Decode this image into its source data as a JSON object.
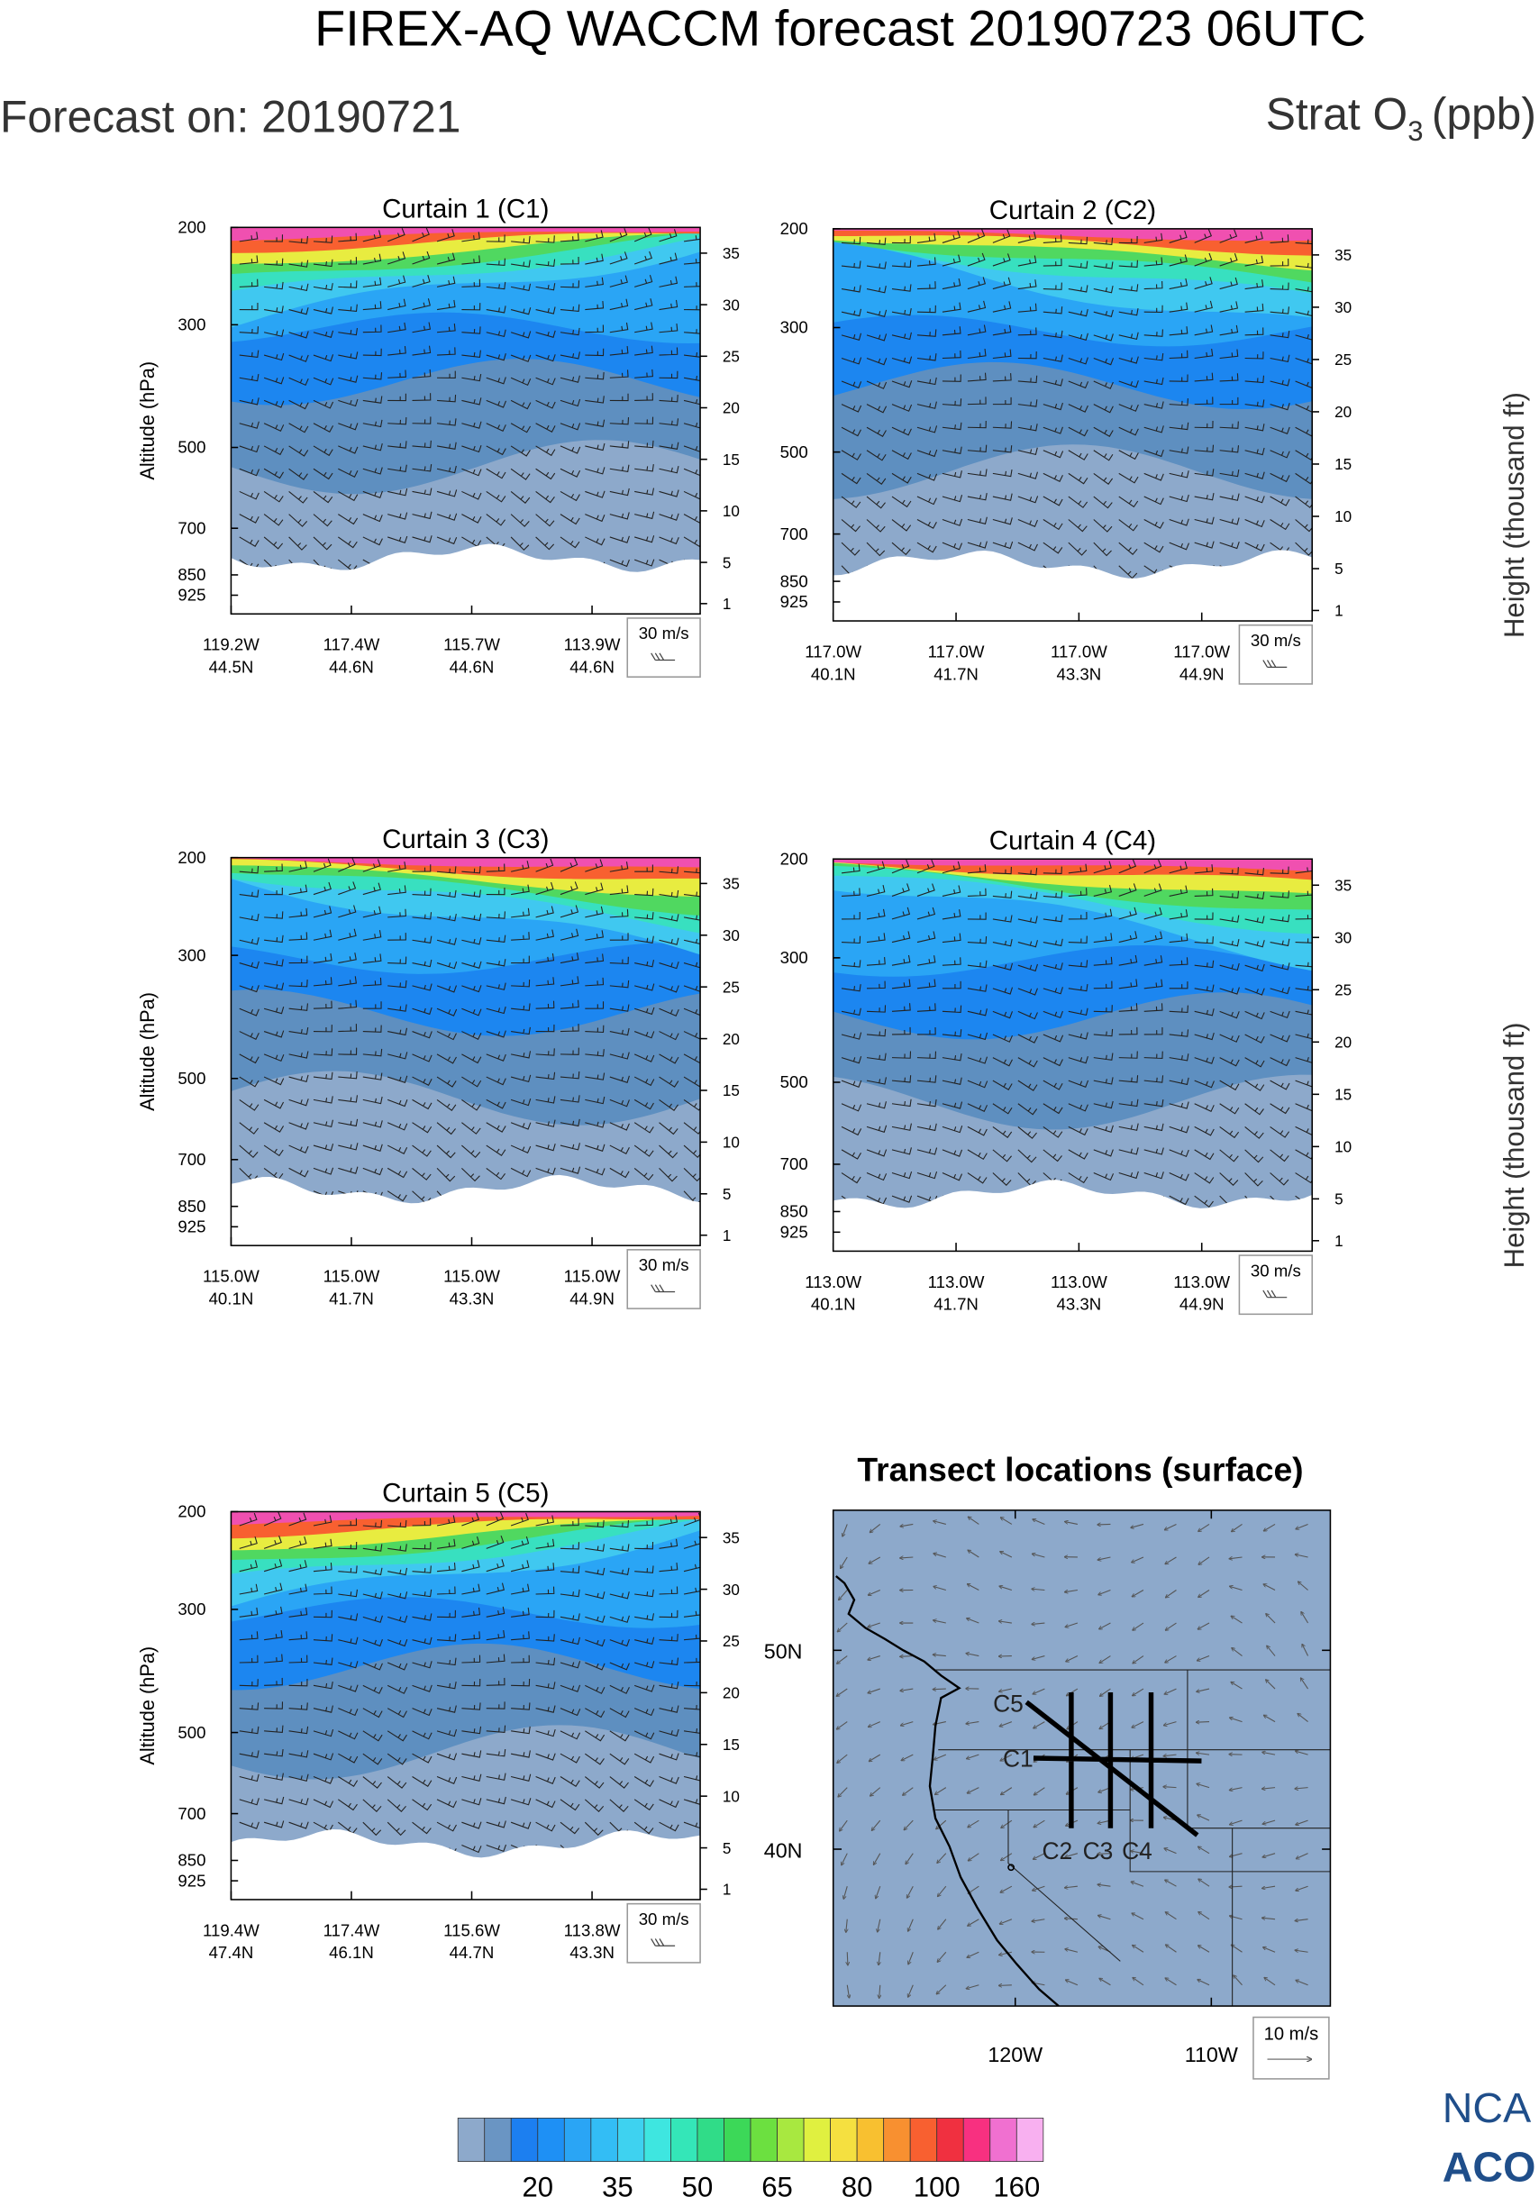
{
  "header": {
    "title": "FIREX-AQ WACCM forecast 20190723 06UTC",
    "forecast_date": "Forecast on: 20190721",
    "variable": "Strat O",
    "variable_sub": "3",
    "variable_unit": "(ppb)"
  },
  "chart_data": [
    {
      "type": "contour",
      "title": "Curtain 1 (C1)",
      "ylabel": "Altitude (hPa)",
      "ylog": true,
      "ylim": [
        200,
        1000
      ],
      "yticks": [
        200,
        300,
        500,
        700,
        850,
        925
      ],
      "y2lim": [
        0,
        37.5
      ],
      "y2ticks": [
        1,
        5,
        10,
        15,
        20,
        25,
        30,
        35
      ],
      "xticks": [
        {
          "lon": "119.2W",
          "lat": "44.5N"
        },
        {
          "lon": "117.4W",
          "lat": "44.6N"
        },
        {
          "lon": "115.7W",
          "lat": "44.6N"
        },
        {
          "lon": "113.9W",
          "lat": "44.6N"
        }
      ],
      "wind_key": "30 m/s"
    },
    {
      "type": "contour",
      "title": "Curtain 2 (C2)",
      "ylog": true,
      "y2label": "Height (thousand ft)",
      "ylim": [
        200,
        1000
      ],
      "yticks": [
        200,
        300,
        500,
        700,
        850,
        925
      ],
      "y2lim": [
        0,
        37.5
      ],
      "y2ticks": [
        1,
        5,
        10,
        15,
        20,
        25,
        30,
        35
      ],
      "xticks": [
        {
          "lon": "117.0W",
          "lat": "40.1N"
        },
        {
          "lon": "117.0W",
          "lat": "41.7N"
        },
        {
          "lon": "117.0W",
          "lat": "43.3N"
        },
        {
          "lon": "117.0W",
          "lat": "44.9N"
        }
      ],
      "wind_key": "30 m/s"
    },
    {
      "type": "contour",
      "title": "Curtain 3 (C3)",
      "ylabel": "Altitude (hPa)",
      "ylog": true,
      "ylim": [
        200,
        1000
      ],
      "yticks": [
        200,
        300,
        500,
        700,
        850,
        925
      ],
      "y2lim": [
        0,
        37.5
      ],
      "y2ticks": [
        1,
        5,
        10,
        15,
        20,
        25,
        30,
        35
      ],
      "xticks": [
        {
          "lon": "115.0W",
          "lat": "40.1N"
        },
        {
          "lon": "115.0W",
          "lat": "41.7N"
        },
        {
          "lon": "115.0W",
          "lat": "43.3N"
        },
        {
          "lon": "115.0W",
          "lat": "44.9N"
        }
      ],
      "wind_key": "30 m/s"
    },
    {
      "type": "contour",
      "title": "Curtain 4 (C4)",
      "ylog": true,
      "y2label": "Height (thousand ft)",
      "ylim": [
        200,
        1000
      ],
      "yticks": [
        200,
        300,
        500,
        700,
        850,
        925
      ],
      "y2lim": [
        0,
        37.5
      ],
      "y2ticks": [
        1,
        5,
        10,
        15,
        20,
        25,
        30,
        35
      ],
      "xticks": [
        {
          "lon": "113.0W",
          "lat": "40.1N"
        },
        {
          "lon": "113.0W",
          "lat": "41.7N"
        },
        {
          "lon": "113.0W",
          "lat": "43.3N"
        },
        {
          "lon": "113.0W",
          "lat": "44.9N"
        }
      ],
      "wind_key": "30 m/s"
    },
    {
      "type": "contour",
      "title": "Curtain 5 (C5)",
      "ylabel": "Altitude (hPa)",
      "ylog": true,
      "ylim": [
        200,
        1000
      ],
      "yticks": [
        200,
        300,
        500,
        700,
        850,
        925
      ],
      "y2lim": [
        0,
        37.5
      ],
      "y2ticks": [
        1,
        5,
        10,
        15,
        20,
        25,
        30,
        35
      ],
      "xticks": [
        {
          "lon": "119.4W",
          "lat": "47.4N"
        },
        {
          "lon": "117.4W",
          "lat": "46.1N"
        },
        {
          "lon": "115.6W",
          "lat": "44.7N"
        },
        {
          "lon": "113.8W",
          "lat": "43.3N"
        }
      ],
      "wind_key": "30 m/s"
    },
    {
      "type": "map",
      "title": "Transect locations (surface)",
      "xticks": [
        "120W",
        "110W"
      ],
      "yticks": [
        "50N",
        "40N"
      ],
      "transects": [
        "C1",
        "C2",
        "C3",
        "C4",
        "C5"
      ],
      "wind_key": "10 m/s"
    }
  ],
  "colorbar": {
    "colors": [
      "#8da9cb",
      "#6a95c3",
      "#1c7ff0",
      "#1e90f5",
      "#2aa5f5",
      "#33bdf5",
      "#3ed2f0",
      "#3ee6e0",
      "#34e6b8",
      "#30dc88",
      "#3cd858",
      "#6ce040",
      "#a8e840",
      "#e0f040",
      "#f5e040",
      "#f8c030",
      "#f89030",
      "#f86030",
      "#f03040",
      "#f83080",
      "#f070d0",
      "#f8b0f0"
    ],
    "labels": [
      20,
      35,
      50,
      65,
      80,
      100,
      160
    ]
  },
  "logo": {
    "line1": "NCA",
    "line2": "ACO"
  }
}
